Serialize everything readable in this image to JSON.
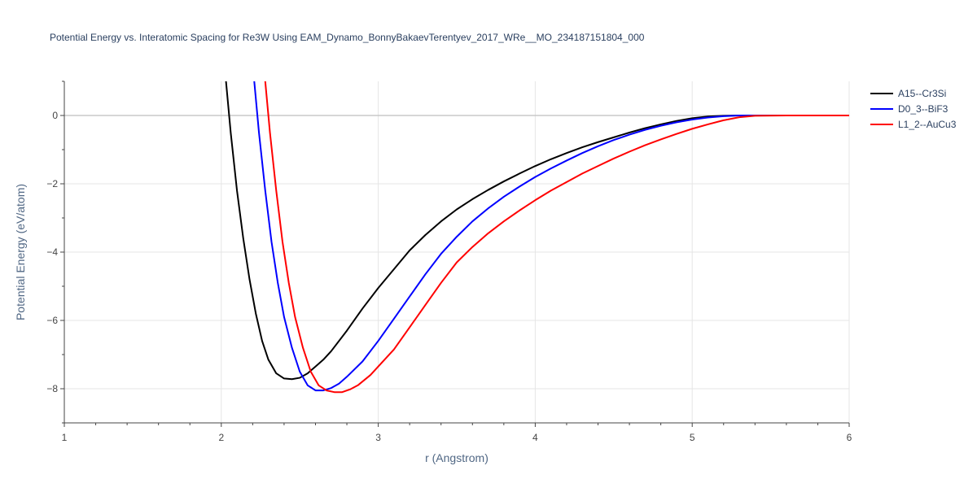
{
  "chart_data": {
    "type": "line",
    "title": "Potential Energy vs. Interatomic Spacing for Re3W Using EAM_Dynamo_BonnyBakaevTerentyev_2017_WRe__MO_234187151804_000",
    "xlabel": "r (Angstrom)",
    "ylabel": "Potential Energy (eV/atom)",
    "xlim": [
      1,
      6
    ],
    "ylim": [
      -9,
      1
    ],
    "x_ticks": [
      1,
      2,
      3,
      4,
      5,
      6
    ],
    "x_tick_labels": [
      "1",
      "2",
      "3",
      "4",
      "5",
      "6"
    ],
    "y_ticks": [
      -8,
      -6,
      -4,
      -2,
      0
    ],
    "y_tick_labels": [
      "−8",
      "−6",
      "−4",
      "−2",
      "0"
    ],
    "grid": true,
    "legend_position": "top-right",
    "series": [
      {
        "name": "A15--Cr3Si",
        "color": "#000000",
        "x": [
          2.03,
          2.06,
          2.1,
          2.14,
          2.18,
          2.22,
          2.26,
          2.3,
          2.35,
          2.4,
          2.45,
          2.5,
          2.55,
          2.6,
          2.65,
          2.7,
          2.8,
          2.9,
          3.0,
          3.1,
          3.2,
          3.3,
          3.4,
          3.5,
          3.6,
          3.7,
          3.8,
          3.9,
          4.0,
          4.1,
          4.2,
          4.3,
          4.4,
          4.5,
          4.6,
          4.7,
          4.8,
          4.9,
          5.0,
          5.1,
          5.2,
          5.3,
          5.4,
          5.6,
          5.8,
          6.0
        ],
        "y": [
          1.0,
          -0.5,
          -2.2,
          -3.6,
          -4.8,
          -5.8,
          -6.6,
          -7.15,
          -7.55,
          -7.7,
          -7.72,
          -7.68,
          -7.55,
          -7.35,
          -7.15,
          -6.9,
          -6.3,
          -5.65,
          -5.05,
          -4.5,
          -3.95,
          -3.5,
          -3.1,
          -2.75,
          -2.45,
          -2.18,
          -1.93,
          -1.7,
          -1.48,
          -1.28,
          -1.1,
          -0.93,
          -0.78,
          -0.64,
          -0.5,
          -0.37,
          -0.26,
          -0.16,
          -0.08,
          -0.03,
          -0.01,
          0.0,
          0.0,
          0.0,
          0.0,
          0.0
        ]
      },
      {
        "name": "D0_3--BiF3",
        "color": "#0000ff",
        "x": [
          2.21,
          2.24,
          2.28,
          2.32,
          2.36,
          2.4,
          2.45,
          2.5,
          2.55,
          2.6,
          2.65,
          2.7,
          2.75,
          2.8,
          2.9,
          3.0,
          3.1,
          3.2,
          3.3,
          3.4,
          3.5,
          3.6,
          3.7,
          3.8,
          3.9,
          4.0,
          4.1,
          4.2,
          4.3,
          4.4,
          4.5,
          4.6,
          4.7,
          4.8,
          4.9,
          5.0,
          5.1,
          5.2,
          5.3,
          5.4,
          5.6,
          5.8,
          6.0
        ],
        "y": [
          1.0,
          -0.5,
          -2.2,
          -3.7,
          -4.9,
          -5.9,
          -6.8,
          -7.5,
          -7.9,
          -8.05,
          -8.05,
          -7.98,
          -7.85,
          -7.65,
          -7.2,
          -6.6,
          -5.95,
          -5.3,
          -4.65,
          -4.05,
          -3.55,
          -3.1,
          -2.72,
          -2.38,
          -2.08,
          -1.8,
          -1.55,
          -1.32,
          -1.1,
          -0.9,
          -0.72,
          -0.56,
          -0.42,
          -0.3,
          -0.2,
          -0.12,
          -0.06,
          -0.02,
          0.0,
          0.0,
          0.0,
          0.0,
          0.0
        ]
      },
      {
        "name": "L1_2--AuCu3",
        "color": "#ff0000",
        "x": [
          2.28,
          2.31,
          2.35,
          2.39,
          2.43,
          2.47,
          2.52,
          2.57,
          2.62,
          2.67,
          2.72,
          2.77,
          2.82,
          2.87,
          2.95,
          3.0,
          3.1,
          3.2,
          3.3,
          3.4,
          3.5,
          3.6,
          3.7,
          3.8,
          3.9,
          4.0,
          4.1,
          4.2,
          4.3,
          4.4,
          4.5,
          4.6,
          4.7,
          4.8,
          4.9,
          5.0,
          5.1,
          5.2,
          5.3,
          5.4,
          5.6,
          5.8,
          6.0
        ],
        "y": [
          1.0,
          -0.5,
          -2.2,
          -3.7,
          -4.9,
          -5.9,
          -6.8,
          -7.5,
          -7.9,
          -8.05,
          -8.1,
          -8.1,
          -8.02,
          -7.9,
          -7.6,
          -7.35,
          -6.85,
          -6.2,
          -5.55,
          -4.9,
          -4.3,
          -3.85,
          -3.45,
          -3.1,
          -2.78,
          -2.48,
          -2.2,
          -1.95,
          -1.7,
          -1.48,
          -1.26,
          -1.06,
          -0.87,
          -0.7,
          -0.54,
          -0.39,
          -0.26,
          -0.14,
          -0.05,
          -0.01,
          0.0,
          0.0,
          0.0
        ]
      }
    ]
  }
}
